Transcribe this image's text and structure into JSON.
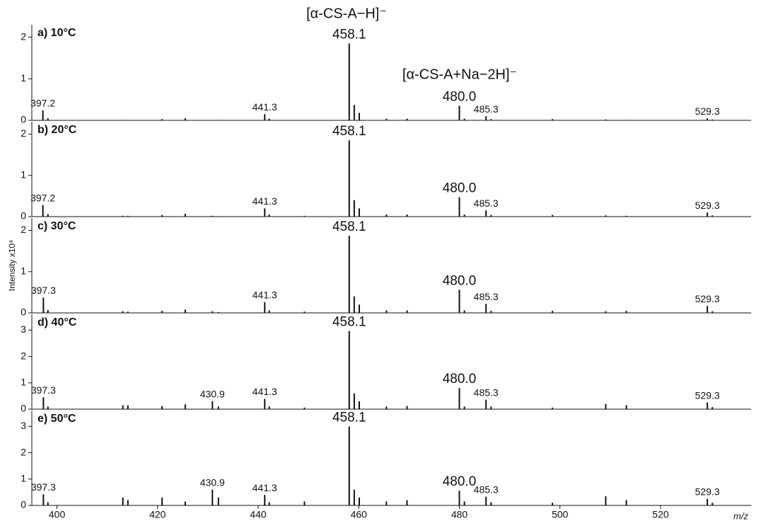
{
  "chart_data": [
    {
      "type": "stem",
      "title": "a) 10°C",
      "annotations": [
        {
          "text": "[α-CS-A−H]⁻",
          "color": "#1b7a3e"
        },
        {
          "text": "[α-CS-A+Na−2H]⁻",
          "color": "#cc2236"
        }
      ],
      "x": [
        397.2,
        398.2,
        413.1,
        414.1,
        420.9,
        425.5,
        430.9,
        432.1,
        441.3,
        442.2,
        449.2,
        458.1,
        459.1,
        460.1,
        465.5,
        469.6,
        480.0,
        481.0,
        485.3,
        486.3,
        498.5,
        509.1,
        513.2,
        529.3,
        530.3
      ],
      "values": [
        0.24,
        0.05,
        0.01,
        0.01,
        0.03,
        0.05,
        0.01,
        0.01,
        0.15,
        0.04,
        0.01,
        1.85,
        0.37,
        0.18,
        0.04,
        0.04,
        0.35,
        0.04,
        0.1,
        0.03,
        0.03,
        0.02,
        0.01,
        0.05,
        0.02
      ],
      "labels": [
        "397.2",
        null,
        null,
        null,
        null,
        null,
        null,
        null,
        "441.3",
        null,
        null,
        "458.1",
        null,
        null,
        null,
        null,
        "480.0",
        null,
        "485.3",
        null,
        null,
        null,
        null,
        "529.3",
        null
      ],
      "label_colors": [
        null,
        null,
        null,
        null,
        null,
        null,
        null,
        null,
        null,
        null,
        null,
        "#1b7a3e",
        null,
        null,
        null,
        null,
        "#cc2236",
        null,
        null,
        null,
        null,
        null,
        null,
        null,
        null
      ],
      "color": "#111111",
      "xlim": [
        395,
        538
      ],
      "ylim": [
        0,
        2.3
      ],
      "yticks": [
        0,
        1,
        2
      ]
    },
    {
      "type": "stem",
      "title": "b) 20°C",
      "x": [
        397.2,
        398.2,
        413.1,
        414.1,
        420.9,
        425.5,
        430.9,
        432.1,
        441.3,
        442.2,
        449.2,
        458.1,
        459.1,
        460.1,
        465.5,
        469.6,
        480.0,
        481.0,
        485.3,
        486.3,
        498.5,
        509.1,
        513.2,
        529.3,
        530.3
      ],
      "values": [
        0.28,
        0.06,
        0.02,
        0.02,
        0.04,
        0.07,
        0.02,
        0.01,
        0.2,
        0.05,
        0.02,
        1.85,
        0.4,
        0.2,
        0.05,
        0.05,
        0.47,
        0.05,
        0.15,
        0.04,
        0.04,
        0.03,
        0.02,
        0.1,
        0.03
      ],
      "labels": [
        "397.2",
        null,
        null,
        null,
        null,
        null,
        null,
        null,
        "441.3",
        null,
        null,
        "458.1",
        null,
        null,
        null,
        null,
        "480.0",
        null,
        "485.3",
        null,
        null,
        null,
        null,
        "529.3",
        null
      ],
      "label_colors": [
        null,
        null,
        null,
        null,
        null,
        null,
        null,
        null,
        null,
        null,
        null,
        "#1b7a3e",
        null,
        null,
        null,
        null,
        "#cc2236",
        null,
        null,
        null,
        null,
        null,
        null,
        null,
        null
      ],
      "color": "#111111",
      "xlim": [
        395,
        538
      ],
      "ylim": [
        0,
        2.3
      ],
      "yticks": [
        0,
        1,
        2
      ]
    },
    {
      "type": "stem",
      "title": "c) 30°C",
      "ylabel": "Intensity x10⁴",
      "x": [
        397.3,
        398.2,
        413.1,
        414.1,
        420.9,
        425.5,
        430.9,
        432.1,
        441.3,
        442.2,
        449.2,
        458.1,
        459.1,
        460.1,
        465.5,
        469.6,
        480.0,
        481.0,
        485.3,
        486.3,
        498.5,
        509.1,
        513.2,
        529.3,
        530.3
      ],
      "values": [
        0.37,
        0.07,
        0.04,
        0.03,
        0.05,
        0.08,
        0.04,
        0.02,
        0.26,
        0.06,
        0.03,
        1.87,
        0.4,
        0.2,
        0.06,
        0.06,
        0.56,
        0.06,
        0.22,
        0.05,
        0.05,
        0.04,
        0.05,
        0.17,
        0.04
      ],
      "labels": [
        "397.3",
        null,
        null,
        null,
        null,
        null,
        null,
        null,
        "441.3",
        null,
        null,
        "458.1",
        null,
        null,
        null,
        null,
        "480.0",
        null,
        "485.3",
        null,
        null,
        null,
        null,
        "529.3",
        null
      ],
      "label_colors": [
        null,
        null,
        null,
        null,
        null,
        null,
        null,
        null,
        null,
        null,
        null,
        "#1b7a3e",
        null,
        null,
        null,
        null,
        "#cc2236",
        null,
        null,
        null,
        null,
        null,
        null,
        null,
        null
      ],
      "color": "#111111",
      "xlim": [
        395,
        538
      ],
      "ylim": [
        0,
        2.3
      ],
      "yticks": [
        0,
        1,
        2
      ]
    },
    {
      "type": "stem",
      "title": "d) 40°C",
      "x": [
        397.3,
        398.2,
        413.1,
        414.1,
        420.9,
        425.5,
        430.9,
        432.1,
        441.3,
        442.2,
        449.2,
        458.1,
        459.1,
        460.1,
        465.5,
        469.6,
        480.0,
        481.0,
        485.3,
        486.3,
        498.5,
        509.1,
        513.2,
        529.3,
        530.3
      ],
      "values": [
        0.45,
        0.1,
        0.15,
        0.15,
        0.12,
        0.18,
        0.3,
        0.1,
        0.39,
        0.1,
        0.06,
        2.97,
        0.6,
        0.3,
        0.1,
        0.12,
        0.8,
        0.1,
        0.36,
        0.1,
        0.06,
        0.2,
        0.15,
        0.25,
        0.08
      ],
      "labels": [
        "397.3",
        null,
        null,
        null,
        null,
        null,
        "430.9",
        null,
        "441.3",
        null,
        null,
        "458.1",
        null,
        null,
        null,
        null,
        "480.0",
        null,
        "485.3",
        null,
        null,
        null,
        null,
        "529.3",
        null
      ],
      "label_colors": [
        null,
        null,
        null,
        null,
        null,
        null,
        null,
        null,
        null,
        null,
        null,
        "#1b7a3e",
        null,
        null,
        null,
        null,
        "#cc2236",
        null,
        null,
        null,
        null,
        null,
        null,
        null,
        null
      ],
      "color": "#111111",
      "xlim": [
        395,
        538
      ],
      "ylim": [
        0,
        3.6
      ],
      "yticks": [
        0,
        1,
        2,
        3
      ]
    },
    {
      "type": "stem",
      "title": "e) 50°C",
      "xlabel": "m/z",
      "x": [
        397.3,
        398.2,
        413.1,
        414.1,
        420.9,
        425.5,
        430.9,
        432.1,
        441.3,
        442.2,
        449.2,
        458.1,
        459.1,
        460.1,
        465.5,
        469.6,
        480.0,
        481.0,
        485.3,
        486.3,
        498.5,
        509.1,
        513.2,
        529.3,
        530.3
      ],
      "values": [
        0.42,
        0.12,
        0.3,
        0.2,
        0.3,
        0.15,
        0.6,
        0.3,
        0.4,
        0.12,
        0.15,
        3.0,
        0.6,
        0.3,
        0.15,
        0.2,
        0.56,
        0.15,
        0.33,
        0.12,
        0.1,
        0.35,
        0.2,
        0.25,
        0.1
      ],
      "labels": [
        "397.3",
        null,
        null,
        null,
        null,
        null,
        "430.9",
        null,
        "441.3",
        null,
        null,
        "458.1",
        null,
        null,
        null,
        null,
        "480.0",
        null,
        "485.3",
        null,
        null,
        null,
        null,
        "529.3",
        null
      ],
      "label_colors": [
        null,
        null,
        null,
        null,
        null,
        null,
        null,
        null,
        null,
        null,
        null,
        "#1b7a3e",
        null,
        null,
        null,
        null,
        "#cc2236",
        null,
        null,
        null,
        null,
        null,
        null,
        null,
        null
      ],
      "color": "#111111",
      "xlim": [
        395,
        538
      ],
      "ylim": [
        0,
        3.6
      ],
      "yticks": [
        0,
        1,
        2,
        3
      ],
      "xticks": [
        400,
        420,
        440,
        460,
        480,
        500,
        520
      ]
    }
  ]
}
